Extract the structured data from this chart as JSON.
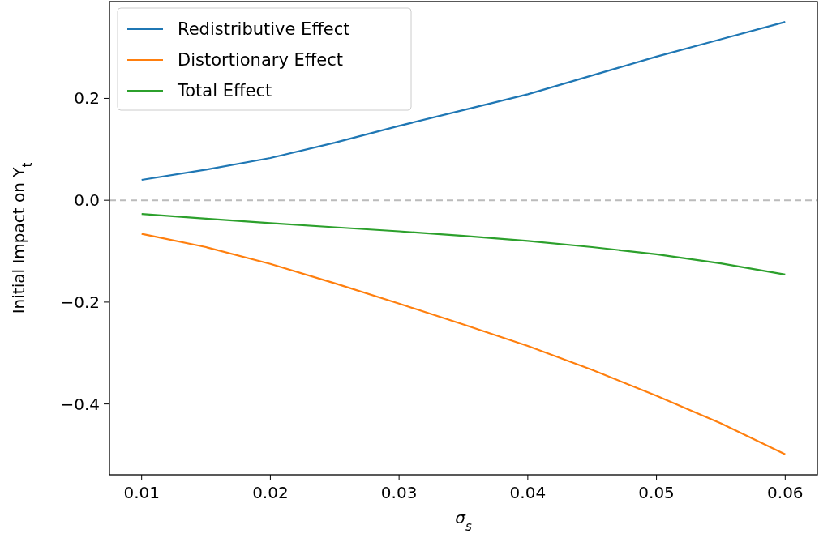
{
  "chart_data": {
    "type": "line",
    "xlabel": "σ$_{s}$",
    "ylabel": "Initial Impact on Y$_{t}$",
    "x": [
      0.01,
      0.015,
      0.02,
      0.025,
      0.03,
      0.035,
      0.04,
      0.045,
      0.05,
      0.055,
      0.06
    ],
    "series": [
      {
        "name": "Redistributive Effect",
        "color": "#1f77b4",
        "values": [
          0.04,
          0.06,
          0.083,
          0.113,
          0.146,
          0.177,
          0.208,
          0.245,
          0.282,
          0.316,
          0.35
        ]
      },
      {
        "name": "Distortionary Effect",
        "color": "#ff7f0e",
        "values": [
          -0.066,
          -0.092,
          -0.125,
          -0.163,
          -0.203,
          -0.244,
          -0.286,
          -0.333,
          -0.384,
          -0.438,
          -0.499
        ]
      },
      {
        "name": "Total Effect",
        "color": "#2ca02c",
        "values": [
          -0.027,
          -0.036,
          -0.045,
          -0.053,
          -0.061,
          -0.07,
          -0.08,
          -0.092,
          -0.106,
          -0.124,
          -0.146
        ]
      }
    ],
    "xlim": [
      0.0075,
      0.0625
    ],
    "xticks": [
      0.01,
      0.02,
      0.03,
      0.04,
      0.05,
      0.06
    ],
    "ylim": [
      -0.539,
      0.39
    ],
    "yticks": [
      {
        "value": -0.4,
        "label": "−0.4"
      },
      {
        "value": -0.2,
        "label": "−0.2"
      },
      {
        "value": 0,
        "label": "0.0"
      },
      {
        "value": 0.2,
        "label": "0.2"
      }
    ],
    "ref_lines": [
      {
        "axis": "y",
        "value": 0,
        "color": "#bbbbbb",
        "line_style": "dashed"
      }
    ],
    "legend": "top left",
    "grid": false,
    "marker": "none",
    "line_style": "solid"
  }
}
